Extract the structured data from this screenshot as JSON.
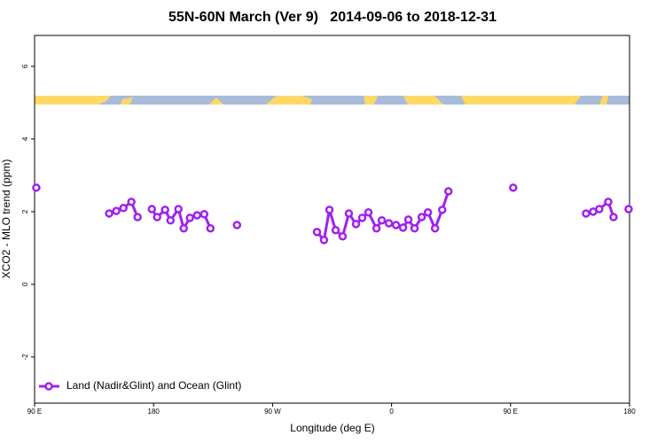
{
  "chart_data": {
    "type": "line",
    "title": "55N-60N March (Ver 9)   2014-09-06 to 2018-12-31",
    "x_label": "Longitude (deg E)",
    "y_label": "XCO2 - MLO trend (ppm)",
    "x": [
      91.3,
      120,
      146.4,
      151.8,
      157.2,
      163.2,
      167.9,
      173,
      178.7,
      182.7,
      188.7,
      192.8,
      198.8,
      202.8,
      207.5,
      212.9,
      218.3,
      223.0,
      233,
      243.1,
      270,
      303.6,
      308.9,
      313.0,
      317.7,
      323.0,
      327.7,
      333.1,
      337.8,
      342.5,
      348.6,
      352.6,
      358.0,
      363.4,
      368.7,
      372.7,
      377.4,
      382.8,
      387.5,
      392.9,
      398.3,
      403.0,
      430,
      452.0,
      480,
      507.1,
      512.5,
      517.1,
      523.9,
      527.9,
      533,
      539.3
    ],
    "series": [
      {
        "name": "Land (Nadir&Glint) and Ocean (Glint)",
        "color": "#a020f0",
        "values": [
          2.66,
          null,
          1.95,
          2.02,
          2.1,
          2.27,
          1.85,
          null,
          2.07,
          1.85,
          2.05,
          1.76,
          2.07,
          1.54,
          1.83,
          1.9,
          1.93,
          1.54,
          null,
          1.63,
          null,
          1.44,
          1.22,
          2.05,
          1.49,
          1.32,
          1.95,
          1.66,
          1.83,
          1.98,
          1.54,
          1.76,
          1.68,
          1.63,
          1.56,
          1.78,
          1.54,
          1.85,
          1.98,
          1.54,
          2.05,
          2.56,
          null,
          2.66,
          null,
          1.95,
          2.0,
          2.07,
          2.27,
          1.85,
          null,
          2.07
        ]
      }
    ],
    "xlim": [
      90,
      540
    ],
    "xticks": [
      {
        "value": 90,
        "label": "90 E"
      },
      180,
      {
        "value": 270,
        "label": "90 W"
      },
      {
        "value": 360,
        "label": "0"
      },
      {
        "value": 450,
        "label": "90 E"
      },
      {
        "value": 540,
        "label": "180"
      }
    ],
    "ylim": [
      -3.27,
      6.85
    ],
    "yticks": [
      -2,
      0,
      2,
      4,
      6
    ],
    "legend": "bottom-left"
  }
}
